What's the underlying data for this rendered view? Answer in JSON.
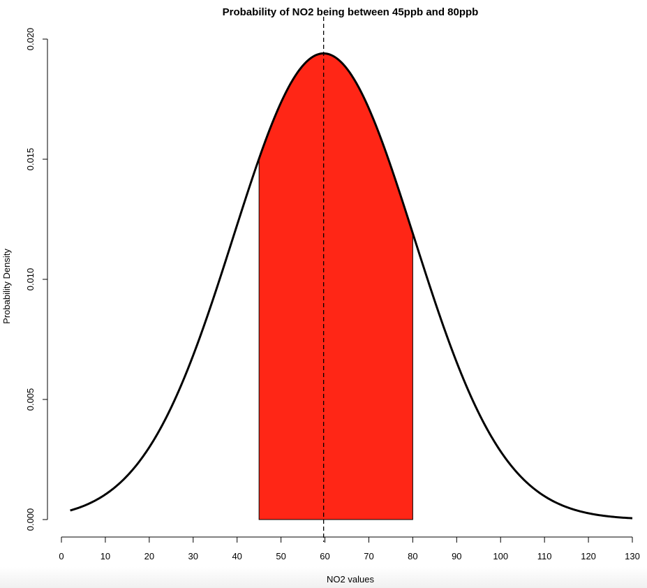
{
  "chart_data": {
    "type": "line",
    "title": "Probability of NO2 being between 45ppb and 80ppb",
    "xlabel": "NO2 values",
    "ylabel": "Probability Density",
    "xlim": [
      0,
      130
    ],
    "ylim": [
      0,
      0.02
    ],
    "xticks": [
      "0",
      "10",
      "20",
      "30",
      "40",
      "50",
      "60",
      "70",
      "80",
      "90",
      "100",
      "110",
      "120",
      "130"
    ],
    "yticks": [
      "0.000",
      "0.005",
      "0.010",
      "0.015",
      "0.020"
    ],
    "distribution": {
      "type": "normal",
      "mean": 59.7,
      "sd": 20.56
    },
    "curve_range": [
      2,
      130
    ],
    "shaded_region": {
      "from": 45,
      "to": 80,
      "color": "#ff2616"
    },
    "mean_line": {
      "x": 59.7,
      "style": "dashed"
    },
    "key_points": [
      {
        "x": 2,
        "y": 0.00038
      },
      {
        "x": 45,
        "y": 0.015
      },
      {
        "x": 59.7,
        "y": 0.0194
      },
      {
        "x": 80,
        "y": 0.0119
      },
      {
        "x": 130,
        "y": 6e-05
      }
    ],
    "grid": false,
    "legend": "none"
  }
}
